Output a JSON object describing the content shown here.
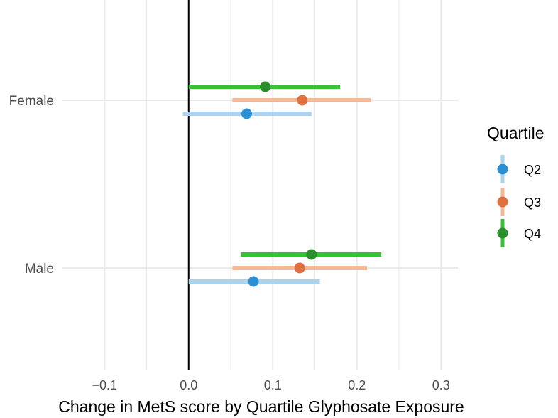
{
  "chart_data": {
    "type": "forest",
    "xlabel": "Change in MetS score by Quartile Glyphosate Exposure",
    "xlim": [
      -0.15,
      0.32
    ],
    "xticks": [
      -0.1,
      0.0,
      0.1,
      0.2,
      0.3
    ],
    "xtick_labels": [
      "−0.1",
      "0.0",
      "0.1",
      "0.2",
      "0.3"
    ],
    "reference_line": 0.0,
    "grid": true,
    "categories": [
      "Female",
      "Male"
    ],
    "legend": {
      "title": "Quartile",
      "position": "right"
    },
    "series": [
      {
        "name": "Q2",
        "color": "#2b8fd6",
        "ci_color": "#a9d3ef",
        "points": [
          {
            "category": "Female",
            "estimate": 0.069,
            "lower": -0.007,
            "upper": 0.146
          },
          {
            "category": "Male",
            "estimate": 0.077,
            "lower": 0.0,
            "upper": 0.156
          }
        ]
      },
      {
        "name": "Q3",
        "color": "#e07040",
        "ci_color": "#f5b995",
        "points": [
          {
            "category": "Female",
            "estimate": 0.135,
            "lower": 0.052,
            "upper": 0.217
          },
          {
            "category": "Male",
            "estimate": 0.132,
            "lower": 0.052,
            "upper": 0.212
          }
        ]
      },
      {
        "name": "Q4",
        "color": "#2a8f2a",
        "ci_color": "#35c235",
        "points": [
          {
            "category": "Female",
            "estimate": 0.091,
            "lower": 0.0,
            "upper": 0.18
          },
          {
            "category": "Male",
            "estimate": 0.146,
            "lower": 0.062,
            "upper": 0.229
          }
        ]
      }
    ]
  }
}
